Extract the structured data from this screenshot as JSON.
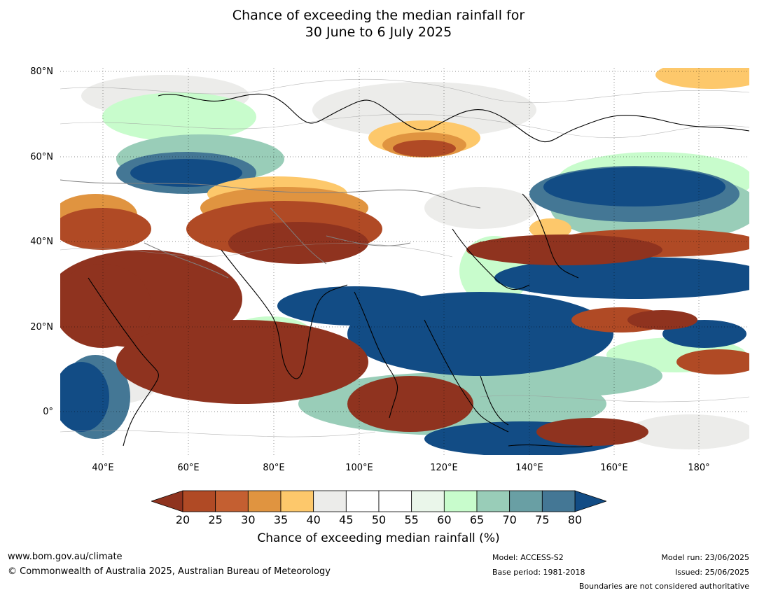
{
  "title": {
    "line1": "Chance of exceeding the median rainfall for",
    "line2": "30 June to 6 July 2025"
  },
  "map": {
    "lat_labels": [
      "80°N",
      "60°N",
      "40°N",
      "20°N",
      "0°"
    ],
    "lon_labels": [
      "40°E",
      "60°E",
      "80°E",
      "100°E",
      "120°E",
      "140°E",
      "160°E",
      "180°"
    ],
    "grid": "dotted",
    "colors": {
      "very_dry": "#8f331f",
      "dry": "#b04a25",
      "moderately_dry": "#e09440",
      "slightly_dry": "#fdc86b",
      "neutral_dry": "#ececea",
      "neutral": "#ffffff",
      "neutral_wet": "#eaf6ea",
      "slightly_wet": "#c8fccc",
      "moderately_wet": "#99cdb8",
      "wet": "#699fa4",
      "very_wet": "#447795",
      "wettest": "#124c85",
      "coastline": "#000000",
      "boundary": "#808080"
    }
  },
  "colorbar": {
    "ticks": [
      "20",
      "25",
      "30",
      "35",
      "40",
      "45",
      "50",
      "55",
      "60",
      "65",
      "70",
      "75",
      "80"
    ],
    "colors": [
      "#b04a25",
      "#c45f31",
      "#e09440",
      "#fdc86b",
      "#ececea",
      "#ffffff",
      "#ffffff",
      "#eaf6ea",
      "#c8fccc",
      "#99cdb8",
      "#699fa4",
      "#447795"
    ],
    "low_color": "#8f331f",
    "high_color": "#124c85",
    "label": "Chance of exceeding median rainfall (%)"
  },
  "footer": {
    "website": "www.bom.gov.au/climate",
    "copyright": "© Commonwealth of Australia 2025, Australian Bureau of Meteorology",
    "model": "Model: ACCESS-S2",
    "base_period": "Base period: 1981-2018",
    "model_run": "Model run: 23/06/2025",
    "issued": "Issued: 25/06/2025",
    "disclaimer": "Boundaries are not considered authoritative"
  }
}
